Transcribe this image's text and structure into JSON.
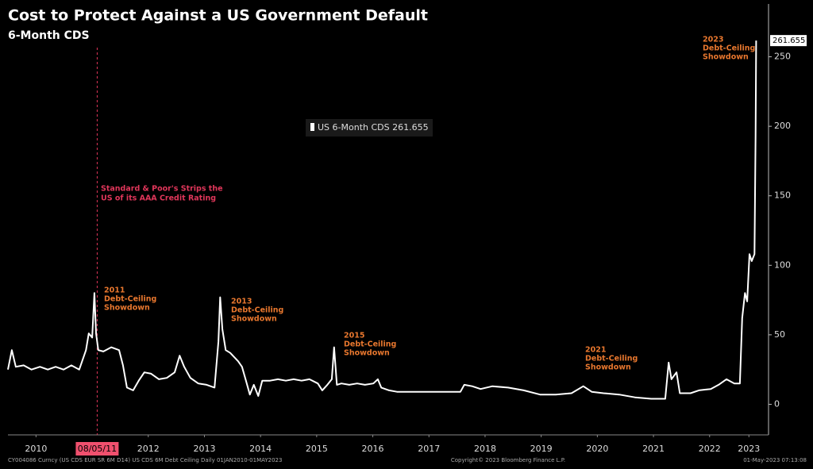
{
  "chart_data": {
    "type": "line",
    "title": "Cost to Protect Against a US Government Default",
    "subtitle": "6-Month CDS",
    "series": [
      {
        "name": "US 6-Month CDS",
        "color": "#ffffff",
        "x": [
          2010.0,
          2010.07,
          2010.14,
          2010.28,
          2010.42,
          2010.57,
          2010.71,
          2010.85,
          2010.99,
          2011.13,
          2011.27,
          2011.39,
          2011.44,
          2011.5,
          2011.54,
          2011.57,
          2011.61,
          2011.7,
          2011.84,
          2011.98,
          2012.05,
          2012.12,
          2012.23,
          2012.33,
          2012.43,
          2012.55,
          2012.69,
          2012.83,
          2012.97,
          2013.06,
          2013.14,
          2013.25,
          2013.39,
          2013.54,
          2013.68,
          2013.75,
          2013.78,
          2013.82,
          2013.88,
          2013.96,
          2014.1,
          2014.17,
          2014.24,
          2014.31,
          2014.38,
          2014.46,
          2014.53,
          2014.67,
          2014.81,
          2014.95,
          2015.09,
          2015.23,
          2015.37,
          2015.52,
          2015.6,
          2015.69,
          2015.77,
          2015.81,
          2015.86,
          2015.94,
          2016.08,
          2016.22,
          2016.36,
          2016.51,
          2016.59,
          2016.65,
          2016.79,
          2016.93,
          2017.21,
          2017.5,
          2017.78,
          2018.06,
          2018.13,
          2018.27,
          2018.42,
          2018.63,
          2018.91,
          2019.19,
          2019.48,
          2019.76,
          2020.04,
          2020.25,
          2020.4,
          2020.61,
          2020.89,
          2021.17,
          2021.46,
          2021.71,
          2021.77,
          2021.82,
          2021.91,
          2021.97,
          2022.16,
          2022.31,
          2022.52,
          2022.66,
          2022.8,
          2022.94,
          2023.04,
          2023.08,
          2023.13,
          2023.17,
          2023.21,
          2023.25,
          2023.3,
          2023.32,
          2023.33
        ],
        "values": [
          25,
          39,
          27,
          28,
          25,
          27,
          25,
          27,
          25,
          28,
          25,
          39,
          51,
          48,
          80,
          51,
          39,
          38,
          41,
          39,
          28,
          12,
          10,
          17,
          23,
          22,
          18,
          19,
          23,
          35,
          27,
          19,
          15,
          14,
          12,
          45,
          77,
          54,
          39,
          37,
          31,
          27,
          17,
          7,
          14,
          6,
          17,
          17,
          18,
          17,
          18,
          17,
          18,
          15,
          10,
          14,
          18,
          41,
          14,
          15,
          14,
          15,
          14,
          15,
          18,
          12,
          10,
          9,
          9,
          9,
          9,
          9,
          14,
          13,
          11,
          13,
          12,
          10,
          7,
          7,
          8,
          13,
          9,
          8,
          7,
          5,
          4,
          4,
          30,
          18,
          23,
          8,
          8,
          10,
          11,
          14,
          18,
          15,
          15,
          62,
          80,
          74,
          108,
          103,
          108,
          194,
          261.655
        ]
      }
    ],
    "xlim": [
      2010,
      2023.55
    ],
    "xticks": [
      {
        "value": 2010.5,
        "label": "2010"
      },
      {
        "value": 2012.5,
        "label": "2012"
      },
      {
        "value": 2013.5,
        "label": "2013"
      },
      {
        "value": 2014.5,
        "label": "2014"
      },
      {
        "value": 2015.5,
        "label": "2015"
      },
      {
        "value": 2016.5,
        "label": "2016"
      },
      {
        "value": 2017.5,
        "label": "2017"
      },
      {
        "value": 2018.5,
        "label": "2018"
      },
      {
        "value": 2019.5,
        "label": "2019"
      },
      {
        "value": 2020.5,
        "label": "2020"
      },
      {
        "value": 2021.5,
        "label": "2021"
      },
      {
        "value": 2022.5,
        "label": "2022"
      },
      {
        "value": 2023.2,
        "label": "2023"
      }
    ],
    "ylim": [
      -22,
      288
    ],
    "yticks": [
      0,
      50,
      100,
      150,
      200,
      250
    ],
    "event": {
      "label": "08/05/11",
      "x": 2011.59,
      "text": [
        "Standard & Poor's Strips the",
        "US of its AAA Credit Rating"
      ]
    },
    "annotations": [
      {
        "text": [
          "2011",
          "Debt-Ceiling",
          "Showdown"
        ]
      },
      {
        "text": [
          "2013",
          "Debt-Ceiling",
          "Showdown"
        ]
      },
      {
        "text": [
          "2015",
          "Debt-Ceiling",
          "Showdown"
        ]
      },
      {
        "text": [
          "2021",
          "Debt-Ceiling",
          "Showdown"
        ]
      },
      {
        "text": [
          "2023",
          "Debt-Ceiling",
          "Showdown"
        ]
      }
    ],
    "footer": {
      "left": "CY004086 Curncy (US CDS EUR SR 6M D14) US CDS 6M Debt Ceiling  Daily 01JAN2010-01MAY2023",
      "center": "Copyright© 2023 Bloomberg Finance L.P.",
      "right": "01-May-2023 07:13:08"
    }
  }
}
